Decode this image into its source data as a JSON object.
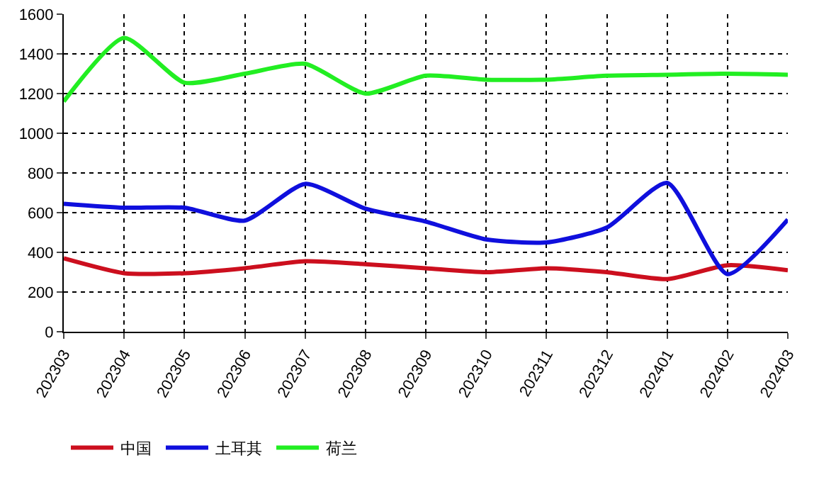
{
  "chart_data": {
    "type": "line",
    "categories": [
      "202303",
      "202304",
      "202305",
      "202306",
      "202307",
      "202308",
      "202309",
      "202310",
      "202311",
      "202312",
      "202401",
      "202402",
      "202403"
    ],
    "series": [
      {
        "name": "中国",
        "color": "#cc0f1e",
        "values": [
          370,
          295,
          295,
          320,
          355,
          340,
          320,
          300,
          320,
          300,
          265,
          335,
          310
        ]
      },
      {
        "name": "土耳其",
        "color": "#0f0fdd",
        "values": [
          645,
          625,
          625,
          560,
          745,
          620,
          555,
          465,
          450,
          525,
          750,
          290,
          565
        ]
      },
      {
        "name": "荷兰",
        "color": "#22ee22",
        "values": [
          1160,
          1480,
          1255,
          1300,
          1350,
          1200,
          1290,
          1270,
          1270,
          1290,
          1295,
          1300,
          1295
        ]
      }
    ],
    "ylim": [
      0,
      1600
    ],
    "yticks": [
      0,
      200,
      400,
      600,
      800,
      1000,
      1200,
      1400,
      1600
    ],
    "grid": true,
    "legend": "bottom left",
    "marker": "none",
    "line_style": "solid"
  }
}
